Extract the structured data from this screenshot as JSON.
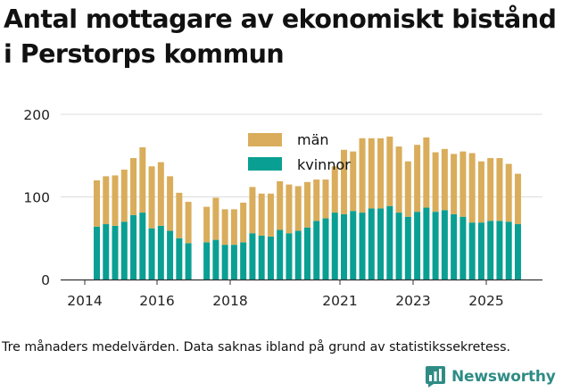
{
  "title": "Antal mottagare av ekonomiskt bistånd i Perstorps kommun",
  "footnote": "Tre månaders medelvärden. Data saknas ibland på grund av statistikssekretess.",
  "brand": {
    "name": "Newsworthy",
    "icon": "newsworthy-logo-icon"
  },
  "colors": {
    "man": "#d9ad5b",
    "kvinnor": "#0a9f93",
    "grid": "#dddddd",
    "axis": "#333333"
  },
  "chart_data": {
    "type": "bar",
    "stacked": true,
    "title": "Antal mottagare av ekonomiskt bistånd i Perstorps kommun",
    "xlabel": "",
    "ylabel": "",
    "ylim": [
      0,
      200
    ],
    "yticks": [
      "0",
      "100",
      "200"
    ],
    "xticks": [
      "2014",
      "2016",
      "2018",
      "2021",
      "2023",
      "2025"
    ],
    "legend": {
      "position": "top-center",
      "entries": [
        "män",
        "kvinnor"
      ]
    },
    "series": [
      {
        "name": "kvinnor",
        "values": [
          64,
          67,
          65,
          70,
          78,
          81,
          62,
          65,
          59,
          50,
          44,
          null,
          45,
          48,
          42,
          42,
          45,
          56,
          53,
          52,
          60,
          56,
          59,
          63,
          71,
          74,
          81,
          79,
          83,
          81,
          86,
          86,
          89,
          81,
          76,
          82,
          87,
          82,
          84,
          79,
          76,
          69,
          69,
          71,
          71,
          70,
          67
        ]
      },
      {
        "name": "män",
        "values": [
          56,
          58,
          61,
          63,
          69,
          79,
          75,
          77,
          66,
          55,
          50,
          null,
          43,
          51,
          43,
          43,
          48,
          56,
          51,
          52,
          59,
          59,
          54,
          55,
          50,
          47,
          56,
          78,
          72,
          90,
          85,
          85,
          84,
          80,
          67,
          81,
          85,
          72,
          74,
          73,
          79,
          84,
          74,
          76,
          76,
          70,
          61
        ]
      }
    ]
  }
}
